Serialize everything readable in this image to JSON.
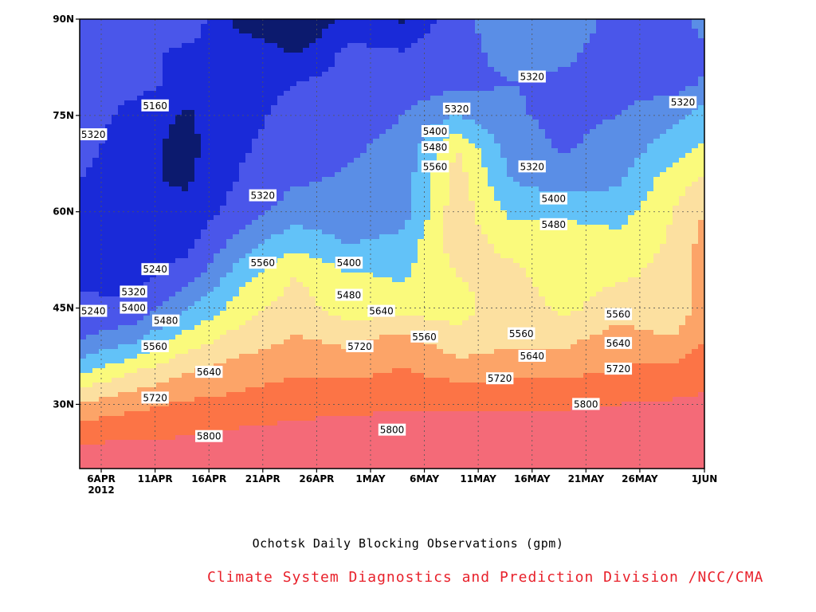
{
  "chart_data": {
    "type": "heatmap",
    "subtype": "filled-contour (time–latitude)",
    "title": "Ochotsk Daily Blocking Observations (gpm)",
    "credit": "Climate System Diagnostics and Prediction Division /NCC/CMA",
    "x_ticks": [
      "6APR",
      "11APR",
      "16APR",
      "21APR",
      "26APR",
      "1MAY",
      "6MAY",
      "11MAY",
      "16MAY",
      "21MAY",
      "26MAY",
      "1JUN"
    ],
    "x_year_label": "2012",
    "y_ticks": [
      "30N",
      "45N",
      "60N",
      "75N",
      "90N"
    ],
    "ylim": [
      20,
      90
    ],
    "xlim": [
      "2012-04-04",
      "2012-06-01"
    ],
    "grid": true,
    "contour_levels": [
      5160,
      5240,
      5320,
      5400,
      5480,
      5560,
      5640,
      5720,
      5800,
      5880
    ],
    "band_colors": [
      "#0c1a6e",
      "#1a2ad8",
      "#4a56ea",
      "#5a8ee6",
      "#62c2f8",
      "#fafa7c",
      "#fce0a0",
      "#fca468",
      "#fc7446",
      "#f46a78",
      "#e83a4a"
    ],
    "grid_latitudes": [
      20,
      25,
      30,
      35,
      40,
      45,
      50,
      55,
      60,
      65,
      70,
      75,
      80,
      85,
      90
    ],
    "grid_days": [
      "4APR",
      "9APR",
      "14APR",
      "19APR",
      "24APR",
      "29APR",
      "4MAY",
      "9MAY",
      "14MAY",
      "19MAY",
      "24MAY",
      "29MAY",
      "1JUN"
    ],
    "series": [
      {
        "lat": 90,
        "values": [
          5280,
          5260,
          5300,
          5120,
          5050,
          5200,
          5150,
          5300,
          5360,
          5340,
          5310,
          5290,
          5350
        ]
      },
      {
        "lat": 85,
        "values": [
          5290,
          5270,
          5220,
          5230,
          5150,
          5260,
          5240,
          5300,
          5340,
          5330,
          5300,
          5290,
          5300
        ]
      },
      {
        "lat": 80,
        "values": [
          5310,
          5280,
          5200,
          5220,
          5240,
          5270,
          5280,
          5300,
          5320,
          5310,
          5300,
          5290,
          5330
        ]
      },
      {
        "lat": 75,
        "values": [
          5300,
          5200,
          5150,
          5220,
          5260,
          5290,
          5320,
          5400,
          5330,
          5300,
          5320,
          5370,
          5430
        ]
      },
      {
        "lat": 70,
        "values": [
          5280,
          5180,
          5140,
          5230,
          5280,
          5310,
          5340,
          5560,
          5360,
          5310,
          5350,
          5440,
          5500
        ]
      },
      {
        "lat": 65,
        "values": [
          5240,
          5170,
          5150,
          5250,
          5310,
          5330,
          5350,
          5600,
          5400,
          5350,
          5390,
          5520,
          5570
        ]
      },
      {
        "lat": 60,
        "values": [
          5210,
          5170,
          5180,
          5280,
          5360,
          5330,
          5360,
          5610,
          5460,
          5470,
          5440,
          5560,
          5640
        ]
      },
      {
        "lat": 55,
        "values": [
          5220,
          5180,
          5220,
          5360,
          5460,
          5400,
          5430,
          5600,
          5540,
          5510,
          5520,
          5570,
          5670
        ]
      },
      {
        "lat": 50,
        "values": [
          5230,
          5210,
          5280,
          5450,
          5560,
          5490,
          5470,
          5560,
          5580,
          5520,
          5550,
          5580,
          5690
        ]
      },
      {
        "lat": 45,
        "values": [
          5250,
          5260,
          5390,
          5520,
          5600,
          5520,
          5520,
          5530,
          5610,
          5540,
          5600,
          5560,
          5700
        ]
      },
      {
        "lat": 40,
        "values": [
          5320,
          5380,
          5520,
          5600,
          5650,
          5620,
          5680,
          5580,
          5620,
          5620,
          5680,
          5650,
          5720
        ]
      },
      {
        "lat": 35,
        "values": [
          5470,
          5560,
          5640,
          5680,
          5710,
          5700,
          5730,
          5690,
          5700,
          5700,
          5730,
          5740,
          5770
        ]
      },
      {
        "lat": 30,
        "values": [
          5650,
          5700,
          5730,
          5750,
          5770,
          5780,
          5790,
          5790,
          5790,
          5790,
          5800,
          5810,
          5820
        ]
      },
      {
        "lat": 25,
        "values": [
          5780,
          5790,
          5800,
          5820,
          5830,
          5840,
          5840,
          5840,
          5840,
          5850,
          5860,
          5860,
          5860
        ]
      },
      {
        "lat": 20,
        "values": [
          5880,
          5860,
          5870,
          5860,
          5860,
          5860,
          5860,
          5860,
          5880,
          5860,
          5860,
          5860,
          5860
        ]
      }
    ],
    "contour_labels": [
      {
        "text": "5160",
        "x": "11APR",
        "lat": 76.5
      },
      {
        "text": "5320",
        "x": "4APR",
        "lat": 72
      },
      {
        "text": "5320",
        "x": "21APR",
        "lat": 62.5
      },
      {
        "text": "5320",
        "x": "9MAY",
        "lat": 76
      },
      {
        "text": "5320",
        "x": "16MAY",
        "lat": 81
      },
      {
        "text": "5320",
        "x": "16MAY",
        "lat": 67
      },
      {
        "text": "5320",
        "x": "30MAY",
        "lat": 77
      },
      {
        "text": "5240",
        "x": "11APR",
        "lat": 51
      },
      {
        "text": "5320",
        "x": "9APR",
        "lat": 47.5
      },
      {
        "text": "5400",
        "x": "9APR",
        "lat": 45
      },
      {
        "text": "5480",
        "x": "12APR",
        "lat": 43
      },
      {
        "text": "5240",
        "x": "4APR",
        "lat": 44.5
      },
      {
        "text": "5560",
        "x": "11APR",
        "lat": 39
      },
      {
        "text": "5640",
        "x": "16APR",
        "lat": 35
      },
      {
        "text": "5720",
        "x": "11APR",
        "lat": 31
      },
      {
        "text": "5560",
        "x": "21APR",
        "lat": 52
      },
      {
        "text": "5400",
        "x": "29APR",
        "lat": 52
      },
      {
        "text": "5480",
        "x": "29APR",
        "lat": 47
      },
      {
        "text": "5640",
        "x": "2MAY",
        "lat": 44.5
      },
      {
        "text": "5720",
        "x": "30APR",
        "lat": 39
      },
      {
        "text": "5800",
        "x": "16APR",
        "lat": 25
      },
      {
        "text": "5800",
        "x": "3MAY",
        "lat": 26
      },
      {
        "text": "5400",
        "x": "7MAY",
        "lat": 72.5
      },
      {
        "text": "5480",
        "x": "7MAY",
        "lat": 70
      },
      {
        "text": "5560",
        "x": "7MAY",
        "lat": 67
      },
      {
        "text": "5560",
        "x": "6MAY",
        "lat": 40.5
      },
      {
        "text": "5400",
        "x": "18MAY",
        "lat": 62
      },
      {
        "text": "5480",
        "x": "18MAY",
        "lat": 58
      },
      {
        "text": "5560",
        "x": "15MAY",
        "lat": 41
      },
      {
        "text": "5640",
        "x": "16MAY",
        "lat": 37.5
      },
      {
        "text": "5720",
        "x": "13MAY",
        "lat": 34
      },
      {
        "text": "5800",
        "x": "21MAY",
        "lat": 30
      },
      {
        "text": "5560",
        "x": "24MAY",
        "lat": 44
      },
      {
        "text": "5640",
        "x": "24MAY",
        "lat": 39.5
      },
      {
        "text": "5720",
        "x": "24MAY",
        "lat": 35.5
      }
    ]
  },
  "footer": {
    "caption": "Ochotsk Daily Blocking Observations (gpm)",
    "credit": "Climate System Diagnostics and Prediction Division /NCC/CMA"
  }
}
